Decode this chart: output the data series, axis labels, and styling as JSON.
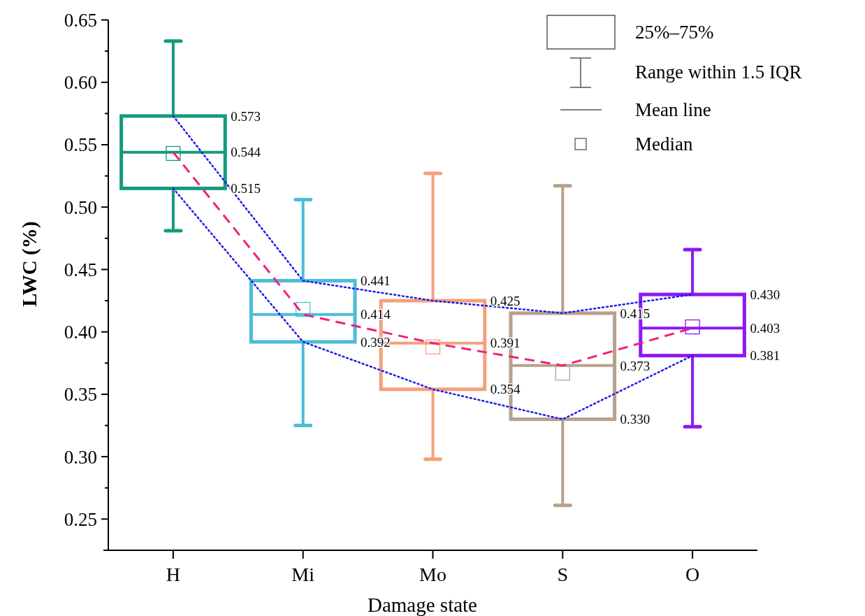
{
  "chart_data": {
    "type": "box",
    "xlabel": "Damage state",
    "ylabel": "LWC (%)",
    "categories": [
      "H",
      "Mi",
      "Mo",
      "S",
      "O"
    ],
    "ylim": [
      0.225,
      0.65
    ],
    "yticks": [
      0.25,
      {
        "value": 0.275,
        "label": null
      },
      {
        "value": 0.3,
        "label": "0.30"
      },
      {
        "value": 0.325,
        "label": null
      },
      0.35,
      {
        "value": 0.375,
        "label": null
      },
      {
        "value": 0.4,
        "label": "0.40"
      },
      {
        "value": 0.425,
        "label": null
      },
      0.45,
      {
        "value": 0.475,
        "label": null
      },
      {
        "value": 0.5,
        "label": "0.50"
      },
      {
        "value": 0.525,
        "label": null
      },
      0.55,
      {
        "value": 0.575,
        "label": null
      },
      {
        "value": 0.6,
        "label": "0.60"
      },
      {
        "value": 0.625,
        "label": null
      },
      0.65
    ],
    "series": [
      {
        "colors": [
          "#159a7c",
          "#4bbcd8",
          "#f4a07c",
          "#b8a08c",
          "#8b18f5"
        ],
        "boxes": [
          {
            "low": 0.481,
            "q1": 0.515,
            "median": 0.543,
            "mean": 0.544,
            "q3": 0.573,
            "high": 0.633
          },
          {
            "low": 0.325,
            "q1": 0.392,
            "median": 0.418,
            "mean": 0.414,
            "q3": 0.441,
            "high": 0.506
          },
          {
            "low": 0.298,
            "q1": 0.354,
            "median": 0.388,
            "mean": 0.391,
            "q3": 0.425,
            "high": 0.527
          },
          {
            "low": 0.261,
            "q1": 0.33,
            "median": 0.367,
            "mean": 0.373,
            "q3": 0.415,
            "high": 0.517
          },
          {
            "low": 0.324,
            "q1": 0.381,
            "median": 0.404,
            "mean": 0.403,
            "q3": 0.43,
            "high": 0.466
          }
        ]
      },
      {
        "type": "line",
        "color": "#1a1aee",
        "line_style": "dotted",
        "x": [
          "H",
          "Mi",
          "Mo",
          "S",
          "O"
        ],
        "values": [
          0.573,
          0.441,
          0.425,
          0.415,
          0.43
        ]
      },
      {
        "type": "line",
        "color": "#1a1aee",
        "line_style": "dotted",
        "x": [
          "H",
          "Mi",
          "Mo",
          "S",
          "O"
        ],
        "values": [
          0.515,
          0.392,
          0.354,
          0.33,
          0.381
        ]
      },
      {
        "type": "line",
        "color": "#f0207c",
        "line_style": "dashed",
        "x": [
          "H",
          "Mi",
          "Mo",
          "S",
          "O"
        ],
        "values": [
          0.544,
          0.414,
          0.391,
          0.373,
          0.403
        ]
      }
    ],
    "annotations": [
      "25%–75%",
      "Range within 1.5 IQR",
      "Mean line",
      "Median",
      "0.573",
      "0.544",
      "0.515",
      "0.441",
      "0.414",
      "0.392",
      "0.425",
      "0.391",
      "0.354",
      "0.415",
      "0.373",
      "0.330",
      "0.430",
      "0.403",
      "0.381"
    ]
  }
}
